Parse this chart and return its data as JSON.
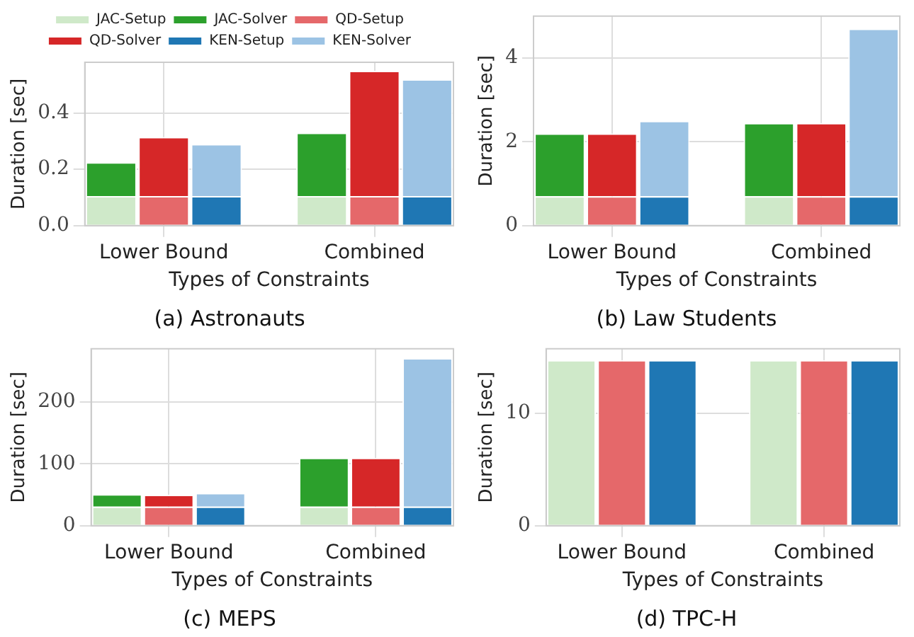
{
  "chart_data": [
    {
      "type": "bar",
      "title": "(a) Astronauts",
      "xlabel": "Types of Constraints",
      "ylabel": "Duration [sec]",
      "categories": [
        null,
        "Lower Bound",
        null,
        null,
        null,
        "Combined",
        null
      ],
      "stacked": true,
      "legend": "top",
      "grid": true,
      "ylim": [
        0,
        0.58
      ],
      "yticks": [
        {
          "value": 0,
          "label": "0.0"
        },
        {
          "value": 0.2,
          "label": "0.2"
        },
        {
          "value": 0.4,
          "label": "0.4"
        }
      ],
      "series": [
        {
          "name": "JAC-Setup",
          "color": "#cfe9c9",
          "values": [
            0.105,
            null,
            null,
            null,
            0.105,
            null,
            null
          ]
        },
        {
          "name": "JAC-Solver",
          "color": "#2ca02c",
          "values": [
            0.12,
            null,
            null,
            null,
            0.225,
            null,
            null
          ]
        },
        {
          "name": "QD-Setup",
          "color": "#e5686a",
          "values": [
            null,
            0.105,
            null,
            null,
            null,
            0.105,
            null
          ]
        },
        {
          "name": "QD-Solver",
          "color": "#d62728",
          "values": [
            null,
            0.21,
            null,
            null,
            null,
            0.445,
            null
          ]
        },
        {
          "name": "KEN-Setup",
          "color": "#1f77b4",
          "values": [
            null,
            null,
            0.105,
            null,
            null,
            null,
            0.105
          ]
        },
        {
          "name": "KEN-Solver",
          "color": "#9cc3e4",
          "values": [
            null,
            null,
            0.185,
            null,
            null,
            null,
            0.415
          ]
        }
      ]
    },
    {
      "type": "bar",
      "title": "(b) Law Students",
      "xlabel": "Types of Constraints",
      "ylabel": "Duration [sec]",
      "categories": [
        null,
        "Lower Bound",
        null,
        null,
        null,
        "Combined",
        null
      ],
      "stacked": true,
      "grid": true,
      "ylim": [
        0,
        5
      ],
      "yticks": [
        0,
        2,
        4
      ],
      "series": [
        {
          "color": "#cfe9c9",
          "values": [
            0.7,
            null,
            null,
            null,
            0.7,
            null,
            null
          ]
        },
        {
          "color": "#2ca02c",
          "values": [
            1.5,
            null,
            null,
            null,
            1.75,
            null,
            null
          ]
        },
        {
          "color": "#e5686a",
          "values": [
            null,
            0.7,
            null,
            null,
            null,
            0.7,
            null
          ]
        },
        {
          "color": "#d62728",
          "values": [
            null,
            1.5,
            null,
            null,
            null,
            1.75,
            null
          ]
        },
        {
          "color": "#1f77b4",
          "values": [
            null,
            null,
            0.7,
            null,
            null,
            null,
            0.7
          ]
        },
        {
          "color": "#9cc3e4",
          "values": [
            null,
            null,
            1.8,
            null,
            null,
            null,
            4.0
          ]
        }
      ]
    },
    {
      "type": "bar",
      "title": "(c) MEPS",
      "xlabel": "Types of Constraints",
      "ylabel": "Duration [sec]",
      "categories": [
        null,
        "Lower Bound",
        null,
        null,
        null,
        "Combined",
        null
      ],
      "stacked": true,
      "grid": true,
      "ylim": [
        0,
        286
      ],
      "yticks": [
        0,
        100,
        200
      ],
      "series": [
        {
          "color": "#cfe9c9",
          "values": [
            31,
            null,
            null,
            null,
            31,
            null,
            null
          ]
        },
        {
          "color": "#2ca02c",
          "values": [
            20,
            null,
            null,
            null,
            79,
            null,
            null
          ]
        },
        {
          "color": "#e5686a",
          "values": [
            null,
            31,
            null,
            null,
            null,
            31,
            null
          ]
        },
        {
          "color": "#d62728",
          "values": [
            null,
            19,
            null,
            null,
            null,
            79,
            null
          ]
        },
        {
          "color": "#1f77b4",
          "values": [
            null,
            null,
            31,
            null,
            null,
            null,
            31
          ]
        },
        {
          "color": "#9cc3e4",
          "values": [
            null,
            null,
            22,
            null,
            null,
            null,
            240
          ]
        }
      ]
    },
    {
      "type": "bar",
      "title": "(d) TPC-H",
      "xlabel": "Types of Constraints",
      "ylabel": "Duration [sec]",
      "categories": [
        null,
        "Lower Bound",
        null,
        null,
        null,
        "Combined",
        null
      ],
      "stacked": true,
      "grid": true,
      "ylim": [
        0,
        15.7
      ],
      "yticks": [
        0,
        10
      ],
      "series": [
        {
          "color": "#cfe9c9",
          "values": [
            14.7,
            null,
            null,
            null,
            14.7,
            null,
            null
          ]
        },
        {
          "color": "#e5686a",
          "values": [
            null,
            14.7,
            null,
            null,
            null,
            14.7,
            null
          ]
        },
        {
          "color": "#1f77b4",
          "values": [
            null,
            null,
            14.7,
            null,
            null,
            null,
            14.7
          ]
        }
      ]
    }
  ]
}
